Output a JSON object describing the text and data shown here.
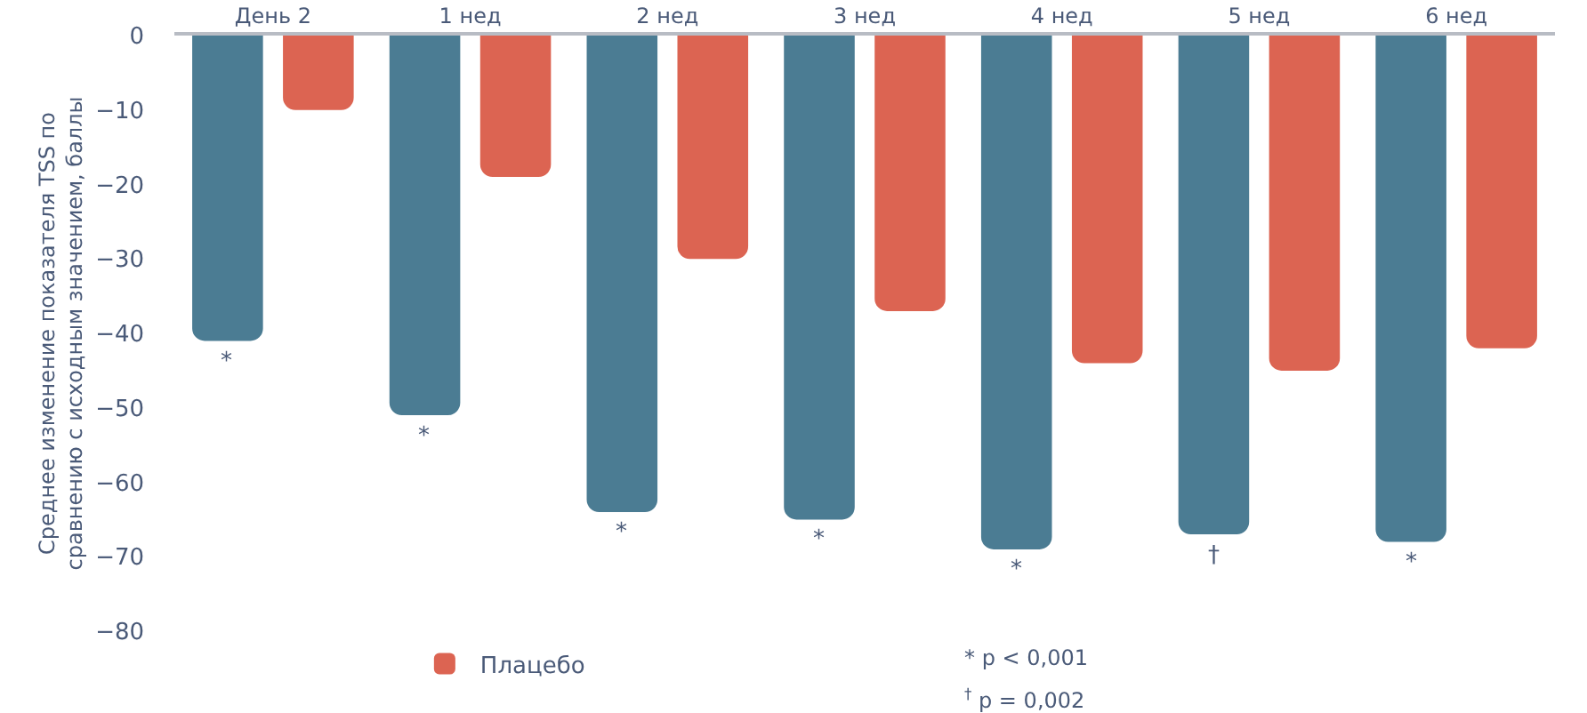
{
  "chart_data": {
    "type": "bar",
    "ylabel": "Среднее изменение показателя TSS по сравнению с исходным значением, баллы",
    "categories": [
      "День 2",
      "1 нед",
      "2 нед",
      "3 нед",
      "4 нед",
      "5 нед",
      "6 нед"
    ],
    "series": [
      {
        "color": "#4b7c93",
        "values": [
          -41,
          -51,
          -64,
          -65,
          -69,
          -67,
          -68
        ]
      },
      {
        "name": "Плацебо",
        "color": "#dc6452",
        "values": [
          -10,
          -19,
          -30,
          -37,
          -44,
          -45,
          -42
        ]
      }
    ],
    "ylim": [
      -80,
      0
    ],
    "yticks": [
      0,
      -10,
      -20,
      -30,
      -40,
      -50,
      -60,
      -70,
      -80
    ],
    "legend": "bottom left",
    "annotations": [
      "*",
      "*",
      "*",
      "*",
      "*",
      "†",
      "*",
      "* p < 0,001",
      "$^{†}$ p = 0,002"
    ]
  }
}
